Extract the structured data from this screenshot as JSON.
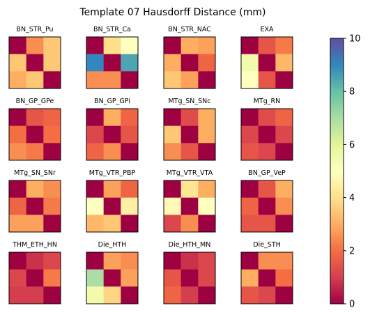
{
  "chart_data": {
    "type": "heatmap",
    "title": "Template 07 Hausdorff Distance (mm)",
    "colormap": "Spectral",
    "colorbar": {
      "min": 0,
      "max": 10,
      "ticks": [
        0,
        2,
        4,
        6,
        8,
        10
      ]
    },
    "grid": false,
    "panels": [
      {
        "label": "BN_STR_Pu",
        "matrix": [
          [
            0,
            2.5,
            3.5
          ],
          [
            3.5,
            0,
            3.5
          ],
          [
            3,
            3.5,
            0
          ]
        ]
      },
      {
        "label": "BN_STR_Ca",
        "matrix": [
          [
            0,
            4,
            5
          ],
          [
            9,
            0,
            8.5
          ],
          [
            2.5,
            2.5,
            0
          ]
        ]
      },
      {
        "label": "BN_STR_NAC",
        "matrix": [
          [
            0,
            3,
            2.8
          ],
          [
            3,
            0,
            1.8
          ],
          [
            3.5,
            2.8,
            0
          ]
        ]
      },
      {
        "label": "EXA",
        "matrix": [
          [
            0,
            1.5,
            2.2
          ],
          [
            5.5,
            0,
            3.2
          ],
          [
            5,
            1.5,
            0
          ]
        ]
      },
      {
        "label": "BN_GP_GPe",
        "matrix": [
          [
            0,
            1.5,
            1.8
          ],
          [
            2,
            0,
            2
          ],
          [
            2.5,
            2.2,
            0
          ]
        ]
      },
      {
        "label": "BN_GP_GPi",
        "matrix": [
          [
            0,
            3,
            1.8
          ],
          [
            1.2,
            0,
            1.5
          ],
          [
            1.8,
            2.5,
            0
          ]
        ]
      },
      {
        "label": "MTg_SN_SNc",
        "matrix": [
          [
            0,
            1.3,
            3
          ],
          [
            3.5,
            0,
            3
          ],
          [
            2.5,
            1.5,
            0
          ]
        ]
      },
      {
        "label": "MTg_RN",
        "matrix": [
          [
            0,
            1.3,
            1.8
          ],
          [
            1.2,
            0,
            1.2
          ],
          [
            1.5,
            1.2,
            0
          ]
        ]
      },
      {
        "label": "MTg_SN_SNr",
        "matrix": [
          [
            0,
            3,
            2.5
          ],
          [
            1.8,
            0,
            2.2
          ],
          [
            2.8,
            2.8,
            0
          ]
        ]
      },
      {
        "label": "MTg_VTR_PBP",
        "matrix": [
          [
            0,
            2.8,
            1.8
          ],
          [
            5,
            0,
            4.5
          ],
          [
            3.2,
            3.5,
            0
          ]
        ]
      },
      {
        "label": "MTg_VTR_VTA",
        "matrix": [
          [
            0,
            4.2,
            3
          ],
          [
            4.8,
            0,
            5
          ],
          [
            1.2,
            2.5,
            0
          ]
        ]
      },
      {
        "label": "BN_GP_VeP",
        "matrix": [
          [
            0,
            1.5,
            3
          ],
          [
            1.8,
            0,
            2.5
          ],
          [
            1.5,
            1.5,
            0
          ]
        ]
      },
      {
        "label": "THM_ETH_HN",
        "matrix": [
          [
            0,
            0.8,
            1.2
          ],
          [
            1.2,
            0,
            2.2
          ],
          [
            1,
            1,
            0
          ]
        ]
      },
      {
        "label": "Die_HTH",
        "matrix": [
          [
            0,
            2.8,
            2.5
          ],
          [
            7,
            0,
            2.8
          ],
          [
            5.5,
            3.8,
            0
          ]
        ]
      },
      {
        "label": "Die_HTH_MN",
        "matrix": [
          [
            0,
            0.8,
            1.2
          ],
          [
            1.5,
            0,
            1.2
          ],
          [
            1.8,
            1,
            0
          ]
        ]
      },
      {
        "label": "Die_STH",
        "matrix": [
          [
            0,
            2.5,
            2.5
          ],
          [
            3,
            0,
            2
          ],
          [
            1.5,
            1.2,
            0
          ]
        ]
      }
    ]
  }
}
